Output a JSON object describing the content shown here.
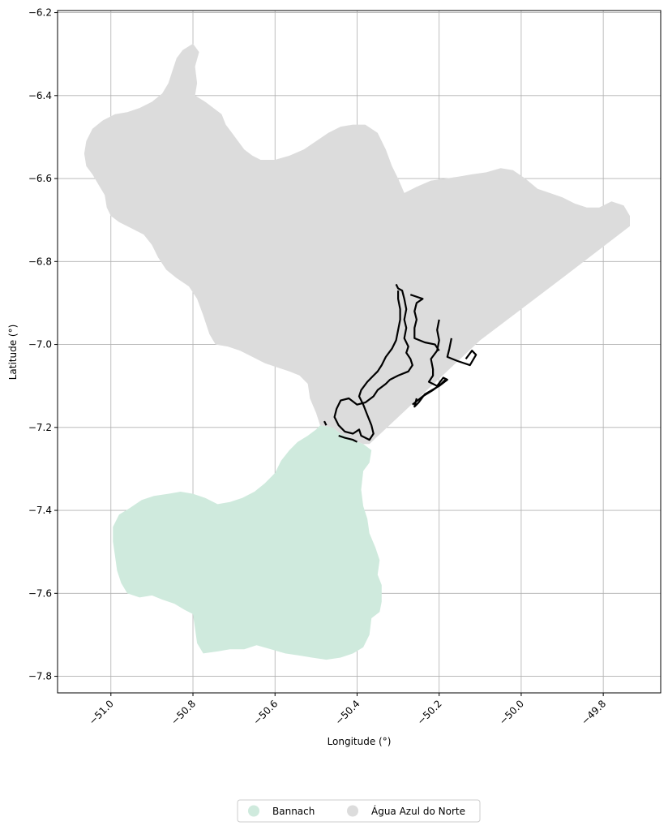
{
  "chart_data": {
    "type": "map",
    "xlabel": "Longitude (°)",
    "ylabel": "Latitude (°)",
    "xlim": [
      -51.13,
      -49.66
    ],
    "ylim": [
      -7.84,
      -6.195
    ],
    "xticks": [
      -51.0,
      -50.8,
      -50.6,
      -50.4,
      -50.2,
      -50.0,
      -49.8
    ],
    "xtick_labels": [
      "−51.0",
      "−50.8",
      "−50.6",
      "−50.4",
      "−50.2",
      "−50.0",
      "−49.8"
    ],
    "yticks": [
      -6.2,
      -6.4,
      -6.6,
      -6.8,
      -7.0,
      -7.2,
      -7.4,
      -7.6,
      -7.8
    ],
    "ytick_labels": [
      "−6.2",
      "−6.4",
      "−6.6",
      "−6.8",
      "−7.0",
      "−7.2",
      "−7.4",
      "−7.6",
      "−7.8"
    ],
    "grid": true,
    "legend_placement": "bottom-center",
    "series": [
      {
        "name": "Bannach",
        "color": "#cfeadd",
        "polygon": [
          [
            -50.49,
            -7.195
          ],
          [
            -50.46,
            -7.2
          ],
          [
            -50.44,
            -7.215
          ],
          [
            -50.41,
            -7.23
          ],
          [
            -50.385,
            -7.24
          ],
          [
            -50.365,
            -7.255
          ],
          [
            -50.37,
            -7.285
          ],
          [
            -50.385,
            -7.305
          ],
          [
            -50.39,
            -7.35
          ],
          [
            -50.385,
            -7.39
          ],
          [
            -50.375,
            -7.42
          ],
          [
            -50.37,
            -7.455
          ],
          [
            -50.355,
            -7.49
          ],
          [
            -50.345,
            -7.52
          ],
          [
            -50.35,
            -7.555
          ],
          [
            -50.34,
            -7.58
          ],
          [
            -50.34,
            -7.62
          ],
          [
            -50.345,
            -7.645
          ],
          [
            -50.365,
            -7.66
          ],
          [
            -50.37,
            -7.7
          ],
          [
            -50.385,
            -7.73
          ],
          [
            -50.41,
            -7.745
          ],
          [
            -50.44,
            -7.755
          ],
          [
            -50.475,
            -7.76
          ],
          [
            -50.51,
            -7.755
          ],
          [
            -50.54,
            -7.75
          ],
          [
            -50.575,
            -7.745
          ],
          [
            -50.61,
            -7.735
          ],
          [
            -50.645,
            -7.725
          ],
          [
            -50.675,
            -7.735
          ],
          [
            -50.71,
            -7.735
          ],
          [
            -50.74,
            -7.74
          ],
          [
            -50.775,
            -7.745
          ],
          [
            -50.79,
            -7.72
          ],
          [
            -50.795,
            -7.685
          ],
          [
            -50.8,
            -7.65
          ],
          [
            -50.82,
            -7.64
          ],
          [
            -50.845,
            -7.625
          ],
          [
            -50.875,
            -7.615
          ],
          [
            -50.9,
            -7.605
          ],
          [
            -50.93,
            -7.61
          ],
          [
            -50.96,
            -7.6
          ],
          [
            -50.975,
            -7.575
          ],
          [
            -50.985,
            -7.545
          ],
          [
            -50.99,
            -7.51
          ],
          [
            -50.995,
            -7.475
          ],
          [
            -50.995,
            -7.44
          ],
          [
            -50.98,
            -7.41
          ],
          [
            -50.955,
            -7.395
          ],
          [
            -50.925,
            -7.375
          ],
          [
            -50.895,
            -7.365
          ],
          [
            -50.86,
            -7.36
          ],
          [
            -50.83,
            -7.355
          ],
          [
            -50.8,
            -7.36
          ],
          [
            -50.77,
            -7.37
          ],
          [
            -50.74,
            -7.385
          ],
          [
            -50.71,
            -7.38
          ],
          [
            -50.68,
            -7.37
          ],
          [
            -50.65,
            -7.355
          ],
          [
            -50.625,
            -7.335
          ],
          [
            -50.6,
            -7.31
          ],
          [
            -50.585,
            -7.28
          ],
          [
            -50.565,
            -7.255
          ],
          [
            -50.545,
            -7.235
          ],
          [
            -50.52,
            -7.22
          ],
          [
            -50.5,
            -7.205
          ]
        ]
      },
      {
        "name": "Água Azul do Norte",
        "color": "#dcdcdc",
        "polygon": [
          [
            -50.8,
            -6.275
          ],
          [
            -50.785,
            -6.295
          ],
          [
            -50.795,
            -6.33
          ],
          [
            -50.79,
            -6.37
          ],
          [
            -50.795,
            -6.4
          ],
          [
            -50.77,
            -6.415
          ],
          [
            -50.75,
            -6.43
          ],
          [
            -50.73,
            -6.445
          ],
          [
            -50.72,
            -6.47
          ],
          [
            -50.705,
            -6.49
          ],
          [
            -50.69,
            -6.51
          ],
          [
            -50.675,
            -6.53
          ],
          [
            -50.655,
            -6.545
          ],
          [
            -50.635,
            -6.555
          ],
          [
            -50.6,
            -6.555
          ],
          [
            -50.565,
            -6.545
          ],
          [
            -50.53,
            -6.53
          ],
          [
            -50.5,
            -6.51
          ],
          [
            -50.47,
            -6.49
          ],
          [
            -50.44,
            -6.475
          ],
          [
            -50.41,
            -6.47
          ],
          [
            -50.38,
            -6.47
          ],
          [
            -50.35,
            -6.49
          ],
          [
            -50.33,
            -6.53
          ],
          [
            -50.315,
            -6.57
          ],
          [
            -50.3,
            -6.6
          ],
          [
            -50.285,
            -6.635
          ],
          [
            -50.255,
            -6.62
          ],
          [
            -50.22,
            -6.605
          ],
          [
            -50.185,
            -6.6
          ],
          [
            -50.15,
            -6.595
          ],
          [
            -50.12,
            -6.59
          ],
          [
            -50.085,
            -6.585
          ],
          [
            -50.05,
            -6.575
          ],
          [
            -50.02,
            -6.58
          ],
          [
            -49.99,
            -6.6
          ],
          [
            -49.96,
            -6.625
          ],
          [
            -49.93,
            -6.635
          ],
          [
            -49.9,
            -6.645
          ],
          [
            -49.87,
            -6.66
          ],
          [
            -49.84,
            -6.67
          ],
          [
            -49.81,
            -6.67
          ],
          [
            -49.78,
            -6.655
          ],
          [
            -49.75,
            -6.665
          ],
          [
            -49.735,
            -6.69
          ],
          [
            -49.735,
            -6.715
          ],
          [
            -49.9,
            -6.84
          ],
          [
            -50.1,
            -6.99
          ],
          [
            -50.37,
            -7.24
          ],
          [
            -50.385,
            -7.24
          ],
          [
            -50.41,
            -7.23
          ],
          [
            -50.44,
            -7.215
          ],
          [
            -50.46,
            -7.2
          ],
          [
            -50.49,
            -7.195
          ],
          [
            -50.5,
            -7.165
          ],
          [
            -50.515,
            -7.13
          ],
          [
            -50.52,
            -7.095
          ],
          [
            -50.54,
            -7.075
          ],
          [
            -50.565,
            -7.065
          ],
          [
            -50.595,
            -7.055
          ],
          [
            -50.625,
            -7.045
          ],
          [
            -50.655,
            -7.03
          ],
          [
            -50.685,
            -7.015
          ],
          [
            -50.715,
            -7.005
          ],
          [
            -50.745,
            -7.0
          ],
          [
            -50.76,
            -6.975
          ],
          [
            -50.775,
            -6.93
          ],
          [
            -50.79,
            -6.89
          ],
          [
            -50.81,
            -6.86
          ],
          [
            -50.84,
            -6.84
          ],
          [
            -50.865,
            -6.82
          ],
          [
            -50.885,
            -6.79
          ],
          [
            -50.9,
            -6.76
          ],
          [
            -50.92,
            -6.735
          ],
          [
            -50.95,
            -6.72
          ],
          [
            -50.98,
            -6.705
          ],
          [
            -51.0,
            -6.69
          ],
          [
            -51.01,
            -6.67
          ],
          [
            -51.015,
            -6.64
          ],
          [
            -51.03,
            -6.615
          ],
          [
            -51.045,
            -6.59
          ],
          [
            -51.06,
            -6.57
          ],
          [
            -51.065,
            -6.54
          ],
          [
            -51.06,
            -6.51
          ],
          [
            -51.045,
            -6.48
          ],
          [
            -51.02,
            -6.46
          ],
          [
            -50.99,
            -6.445
          ],
          [
            -50.96,
            -6.44
          ],
          [
            -50.93,
            -6.43
          ],
          [
            -50.9,
            -6.415
          ],
          [
            -50.875,
            -6.395
          ],
          [
            -50.86,
            -6.37
          ],
          [
            -50.85,
            -6.34
          ],
          [
            -50.84,
            -6.31
          ],
          [
            -50.825,
            -6.29
          ]
        ]
      }
    ],
    "boundaries": [
      [
        [
          -50.305,
          -6.855
        ],
        [
          -50.3,
          -6.865
        ],
        [
          -50.29,
          -6.87
        ],
        [
          -50.285,
          -6.89
        ],
        [
          -50.28,
          -6.915
        ],
        [
          -50.285,
          -6.94
        ],
        [
          -50.28,
          -6.96
        ],
        [
          -50.285,
          -6.985
        ],
        [
          -50.275,
          -7.005
        ],
        [
          -50.28,
          -7.02
        ],
        [
          -50.27,
          -7.035
        ],
        [
          -50.265,
          -7.05
        ],
        [
          -50.275,
          -7.065
        ],
        [
          -50.3,
          -7.075
        ],
        [
          -50.32,
          -7.085
        ],
        [
          -50.33,
          -7.095
        ],
        [
          -50.35,
          -7.11
        ],
        [
          -50.36,
          -7.125
        ],
        [
          -50.38,
          -7.14
        ],
        [
          -50.4,
          -7.145
        ],
        [
          -50.42,
          -7.13
        ],
        [
          -50.44,
          -7.135
        ],
        [
          -50.45,
          -7.155
        ],
        [
          -50.455,
          -7.175
        ],
        [
          -50.445,
          -7.195
        ],
        [
          -50.43,
          -7.21
        ],
        [
          -50.41,
          -7.215
        ],
        [
          -50.395,
          -7.205
        ],
        [
          -50.39,
          -7.22
        ],
        [
          -50.37,
          -7.23
        ],
        [
          -50.36,
          -7.215
        ],
        [
          -50.365,
          -7.195
        ],
        [
          -50.375,
          -7.17
        ],
        [
          -50.385,
          -7.145
        ],
        [
          -50.395,
          -7.125
        ],
        [
          -50.39,
          -7.11
        ],
        [
          -50.375,
          -7.09
        ],
        [
          -50.36,
          -7.075
        ],
        [
          -50.35,
          -7.065
        ],
        [
          -50.34,
          -7.05
        ],
        [
          -50.33,
          -7.03
        ],
        [
          -50.315,
          -7.01
        ],
        [
          -50.305,
          -6.99
        ],
        [
          -50.3,
          -6.965
        ],
        [
          -50.295,
          -6.94
        ],
        [
          -50.295,
          -6.915
        ],
        [
          -50.3,
          -6.89
        ],
        [
          -50.3,
          -6.87
        ]
      ],
      [
        [
          -50.27,
          -6.88
        ],
        [
          -50.24,
          -6.89
        ],
        [
          -50.255,
          -6.9
        ],
        [
          -50.26,
          -6.92
        ],
        [
          -50.255,
          -6.94
        ],
        [
          -50.26,
          -6.96
        ],
        [
          -50.26,
          -6.985
        ],
        [
          -50.235,
          -6.995
        ],
        [
          -50.21,
          -7.0
        ],
        [
          -50.2,
          -7.015
        ]
      ],
      [
        [
          -50.2,
          -6.94
        ],
        [
          -50.205,
          -6.965
        ],
        [
          -50.2,
          -6.99
        ],
        [
          -50.205,
          -7.015
        ],
        [
          -50.22,
          -7.035
        ],
        [
          -50.215,
          -7.06
        ],
        [
          -50.215,
          -7.075
        ],
        [
          -50.225,
          -7.09
        ],
        [
          -50.205,
          -7.1
        ],
        [
          -50.19,
          -7.08
        ],
        [
          -50.18,
          -7.085
        ],
        [
          -50.2,
          -7.1
        ],
        [
          -50.235,
          -7.12
        ],
        [
          -50.25,
          -7.14
        ],
        [
          -50.26,
          -7.15
        ],
        [
          -50.255,
          -7.13
        ]
      ],
      [
        [
          -50.265,
          -7.145
        ],
        [
          -50.24,
          -7.125
        ],
        [
          -50.215,
          -7.11
        ],
        [
          -50.195,
          -7.095
        ],
        [
          -50.185,
          -7.085
        ]
      ],
      [
        [
          -50.17,
          -6.985
        ],
        [
          -50.175,
          -7.01
        ],
        [
          -50.18,
          -7.03
        ],
        [
          -50.155,
          -7.04
        ],
        [
          -50.125,
          -7.05
        ],
        [
          -50.11,
          -7.025
        ],
        [
          -50.12,
          -7.015
        ],
        [
          -50.135,
          -7.035
        ]
      ],
      [
        [
          -50.48,
          -7.185
        ],
        [
          -50.475,
          -7.195
        ]
      ],
      [
        [
          -50.445,
          -7.22
        ],
        [
          -50.43,
          -7.225
        ],
        [
          -50.41,
          -7.23
        ],
        [
          -50.4,
          -7.235
        ]
      ]
    ]
  }
}
